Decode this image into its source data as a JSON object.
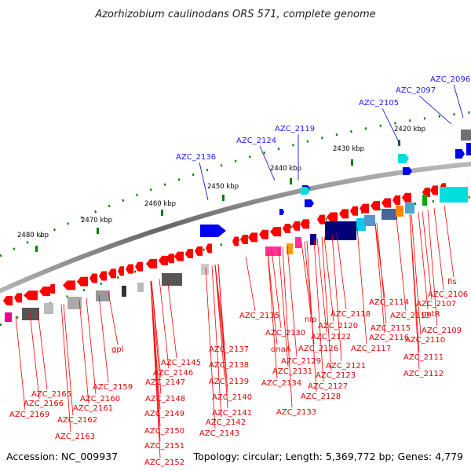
{
  "title": "Azorhizobium caulinodans ORS 571, complete genome",
  "accession": "Accession: NC_009937",
  "topology": "Topology: circular; Length: 5,369,772 bp; Genes: 4,779",
  "colors": {
    "forward_gene": "#0000ee",
    "reverse_gene": "#ff0000",
    "backbone": "#888888",
    "tick": "#008000"
  },
  "kbp_ticks": [
    "2420 kbp",
    "2430 kbp",
    "2440 kbp",
    "2450 kbp",
    "2460 kbp",
    "2470 kbp",
    "2480 kbp"
  ],
  "blue_labels": [
    "AZC_2096",
    "AZC_2097",
    "AZC_2105",
    "AZC_2119",
    "AZC_2124",
    "AZC_2136"
  ],
  "red_labels": [
    "fis",
    "AZC_2106",
    "AZC_2107",
    "gntR",
    "AZC_2109",
    "AZC_2110",
    "AZC_2111",
    "AZC_2112",
    "AZC_2113",
    "AZC_2114",
    "AZC_2115",
    "AZC_2116",
    "AZC_2117",
    "AZC_2118",
    "AZC_2120",
    "AZC_2121",
    "AZC_2122",
    "AZC_2123",
    "AZC_2126",
    "AZC_2127",
    "AZC_2128",
    "AZC_2129",
    "AZC_2130",
    "AZC_2131",
    "AZC_2133",
    "AZC_2134",
    "AZC_2135",
    "dnaA",
    "nlp",
    "AZC_2137",
    "AZC_2138",
    "AZC_2139",
    "AZC_2140",
    "AZC_2141",
    "AZC_2142",
    "AZC_2143",
    "AZC_2145",
    "AZC_2146",
    "AZC_2147",
    "AZC_2148",
    "AZC_2149",
    "AZC_2150",
    "AZC_2151",
    "AZC_2152",
    "gpl",
    "AZC_2159",
    "AZC_2160",
    "AZC_2161",
    "AZC_2162",
    "AZC_2163",
    "AZC_2165",
    "AZC_2166",
    "AZC_2169"
  ]
}
